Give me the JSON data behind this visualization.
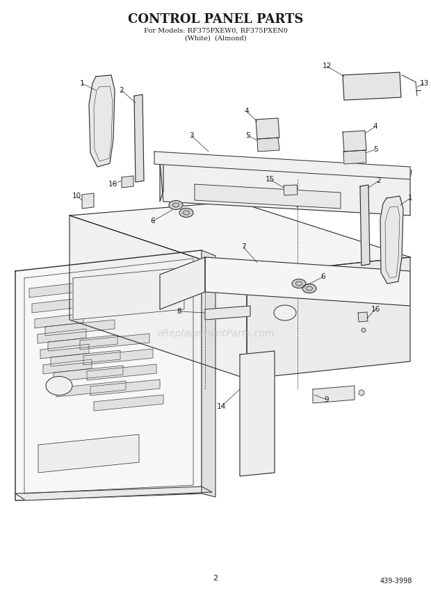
{
  "title_line1": "CONTROL PANEL PARTS",
  "title_line2": "For Models: RF375PXEW0, RF375PXEN0",
  "title_line3": "(White)  (Almond)",
  "page_number": "2",
  "part_number": "439-3998",
  "background_color": "#ffffff",
  "line_color": "#2a2a2a",
  "text_color": "#1a1a1a",
  "watermark_text": "eReplacementParts.com",
  "watermark_color": "#bbbbbb",
  "lw_main": 0.9,
  "lw_thin": 0.5,
  "lw_thick": 1.1
}
